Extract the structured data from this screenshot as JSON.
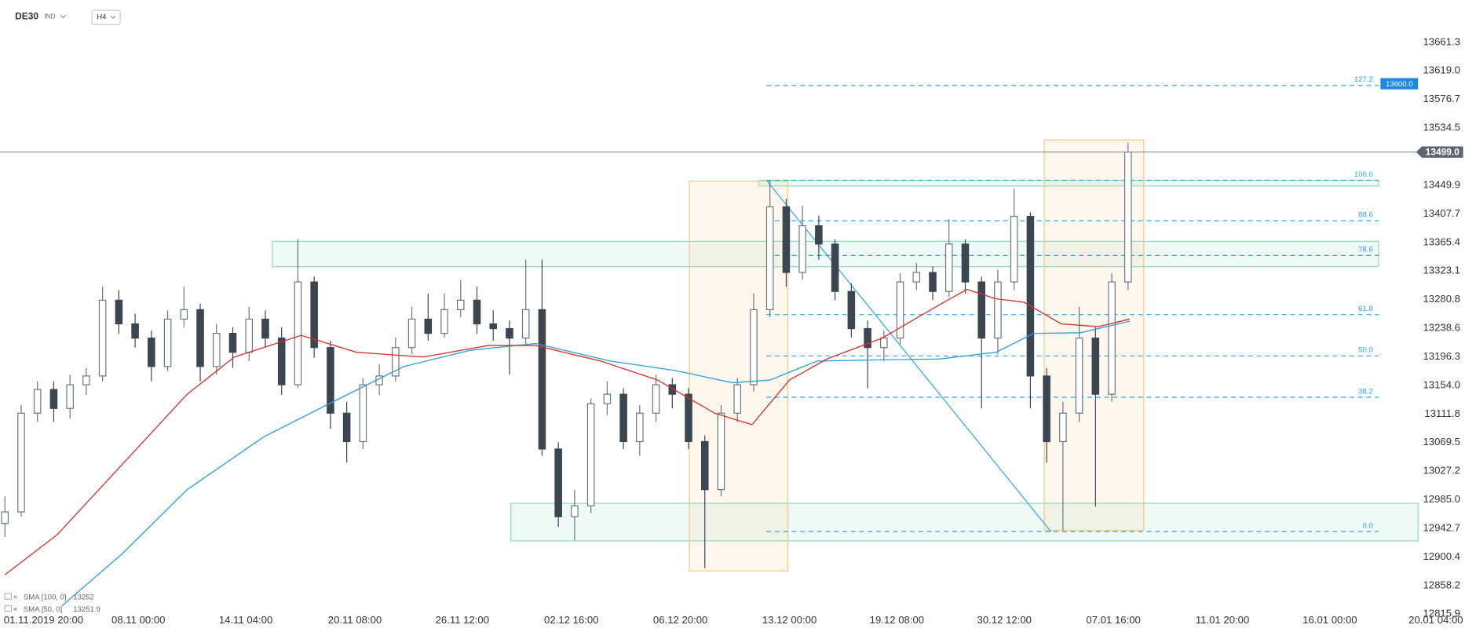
{
  "chart_data": {
    "type": "candlestick",
    "symbol": "DE30",
    "instrument_type": "IND",
    "timeframe": "H4",
    "up_color": "#ffffff",
    "up_stroke": "#6b7580",
    "down_color": "#3b4651",
    "xlim": [
      -0.3,
      89.7
    ],
    "ylim": [
      12815.9,
      13661.3
    ],
    "xticks": [
      {
        "value": 2.3,
        "label": "01.11.2019  20:00"
      },
      {
        "value": 8.2,
        "label": "08.11  00:00"
      },
      {
        "value": 14.8,
        "label": "14.11  04:00"
      },
      {
        "value": 21.5,
        "label": "20.11  08:00"
      },
      {
        "value": 28.1,
        "label": "26.11  12:00"
      },
      {
        "value": 34.8,
        "label": "02.12  16:00"
      },
      {
        "value": 41.5,
        "label": "06.12  20:00"
      },
      {
        "value": 48.2,
        "label": "13.12  00:00"
      },
      {
        "value": 54.8,
        "label": "19.12  08:00"
      },
      {
        "value": 61.4,
        "label": "30.12  12:00"
      },
      {
        "value": 68.1,
        "label": "07.01  16:00"
      },
      {
        "value": 74.8,
        "label": "11.01  20:00"
      },
      {
        "value": 81.4,
        "label": "16.01  00:00"
      },
      {
        "value": 88.0,
        "label": "20.01  04:00"
      }
    ],
    "yticks": [
      13661.3,
      {
        "value": 13619,
        "label": "13619.0"
      },
      13576.7,
      13534.5,
      13449.9,
      13407.7,
      13365.4,
      13323.1,
      13280.8,
      13238.6,
      13196.3,
      {
        "value": 13154,
        "label": "13154.0"
      },
      13111.8,
      13069.5,
      13027.2,
      {
        "value": 12985,
        "label": "12985.0"
      },
      12942.7,
      12900.4,
      12858.2,
      12815.9
    ],
    "ohlc": [
      [
        12950,
        12990,
        12930,
        12967
      ],
      [
        12967,
        13125,
        12960,
        13113
      ],
      [
        13113,
        13160,
        13100,
        13148
      ],
      [
        13148,
        13160,
        13100,
        13120
      ],
      [
        13120,
        13170,
        13105,
        13155
      ],
      [
        13155,
        13180,
        13140,
        13168
      ],
      [
        13168,
        13300,
        13160,
        13280
      ],
      [
        13280,
        13295,
        13230,
        13245
      ],
      [
        13245,
        13260,
        13210,
        13224
      ],
      [
        13224,
        13235,
        13160,
        13182
      ],
      [
        13182,
        13265,
        13175,
        13252
      ],
      [
        13252,
        13300,
        13240,
        13266
      ],
      [
        13266,
        13275,
        13160,
        13182
      ],
      [
        13182,
        13245,
        13170,
        13231
      ],
      [
        13231,
        13240,
        13180,
        13203
      ],
      [
        13203,
        13270,
        13190,
        13252
      ],
      [
        13252,
        13265,
        13210,
        13224
      ],
      [
        13224,
        13240,
        13140,
        13155
      ],
      [
        13155,
        13370,
        13150,
        13307
      ],
      [
        13307,
        13315,
        13195,
        13210
      ],
      [
        13210,
        13220,
        13090,
        13113
      ],
      [
        13113,
        13130,
        13040,
        13071
      ],
      [
        13071,
        13165,
        13060,
        13155
      ],
      [
        13155,
        13185,
        13140,
        13168
      ],
      [
        13168,
        13225,
        13160,
        13210
      ],
      [
        13210,
        13270,
        13200,
        13252
      ],
      [
        13252,
        13290,
        13220,
        13231
      ],
      [
        13231,
        13290,
        13225,
        13266
      ],
      [
        13266,
        13310,
        13255,
        13280
      ],
      [
        13280,
        13300,
        13230,
        13245
      ],
      [
        13245,
        13265,
        13220,
        13238
      ],
      [
        13238,
        13250,
        13170,
        13224
      ],
      [
        13224,
        13340,
        13215,
        13266
      ],
      [
        13266,
        13340,
        13050,
        13060
      ],
      [
        13060,
        13070,
        12945,
        12960
      ],
      [
        12960,
        13000,
        12925,
        12976
      ],
      [
        12976,
        13135,
        12965,
        13127
      ],
      [
        13127,
        13160,
        13110,
        13141
      ],
      [
        13141,
        13150,
        13060,
        13071
      ],
      [
        13071,
        13125,
        13050,
        13113
      ],
      [
        13113,
        13170,
        13100,
        13155
      ],
      [
        13155,
        13165,
        13120,
        13141
      ],
      [
        13141,
        13150,
        13060,
        13071
      ],
      [
        13071,
        13080,
        12884,
        13000
      ],
      [
        13000,
        13125,
        12990,
        13113
      ],
      [
        13113,
        13165,
        13100,
        13155
      ],
      [
        13155,
        13290,
        13145,
        13266
      ],
      [
        13266,
        13457,
        13255,
        13418
      ],
      [
        13418,
        13430,
        13300,
        13321
      ],
      [
        13321,
        13420,
        13310,
        13390
      ],
      [
        13390,
        13405,
        13340,
        13363
      ],
      [
        13363,
        13370,
        13280,
        13293
      ],
      [
        13293,
        13305,
        13225,
        13238
      ],
      [
        13238,
        13250,
        13150,
        13210
      ],
      [
        13210,
        13235,
        13190,
        13224
      ],
      [
        13224,
        13320,
        13215,
        13307
      ],
      [
        13307,
        13335,
        13295,
        13321
      ],
      [
        13321,
        13330,
        13280,
        13293
      ],
      [
        13293,
        13400,
        13285,
        13363
      ],
      [
        13363,
        13370,
        13290,
        13307
      ],
      [
        13307,
        13315,
        13120,
        13224
      ],
      [
        13224,
        13325,
        13200,
        13307
      ],
      [
        13307,
        13445,
        13295,
        13404
      ],
      [
        13404,
        13410,
        13120,
        13168
      ],
      [
        13168,
        13180,
        13040,
        13071
      ],
      [
        13071,
        13130,
        12940,
        13113
      ],
      [
        13113,
        13270,
        13100,
        13224
      ],
      [
        13224,
        13240,
        12975,
        13141
      ],
      [
        13141,
        13320,
        13130,
        13307
      ],
      [
        13307,
        13513,
        13295,
        13499
      ]
    ],
    "series": [
      {
        "name": "SMA [100, 0]",
        "legend_value": 13252.0,
        "color": "#2b9fd9",
        "x": [
          3.5,
          7.2,
          11.2,
          15.9,
          20.5,
          24.5,
          28.6,
          32.6,
          37.2,
          41.2,
          44.7,
          47.0,
          49.9,
          53.9,
          57.4,
          60.9,
          63.2,
          66.1,
          69.1
        ],
        "values": [
          12828,
          12905,
          13000,
          13078,
          13134,
          13182,
          13206,
          13216,
          13190,
          13176,
          13158,
          13162,
          13190,
          13192,
          13193,
          13203,
          13231,
          13232,
          13249
        ]
      },
      {
        "name": "SMA [50, 0]",
        "legend_value": 13251.9,
        "color": "#d9302c",
        "x": [
          0.0,
          3.2,
          7.2,
          11.2,
          14.1,
          18.2,
          21.6,
          25.7,
          29.7,
          32.6,
          36.6,
          40.1,
          43.6,
          45.9,
          48.2,
          50.5,
          53.9,
          57.4,
          59.1,
          60.9,
          62.6,
          64.9,
          67.2,
          69.1
        ],
        "values": [
          12874,
          12933,
          13037,
          13141,
          13196,
          13228,
          13203,
          13196,
          13213,
          13213,
          13190,
          13162,
          13113,
          13096,
          13162,
          13193,
          13224,
          13273,
          13296,
          13282,
          13277,
          13245,
          13241,
          13252
        ]
      }
    ],
    "price_tags": [
      {
        "value": 13499,
        "label": "13499.0",
        "color": "#5d6670"
      },
      {
        "value": 13600,
        "label": "13600.0",
        "color": "#1e88e5"
      }
    ],
    "fib_labels": [
      "127.2",
      "100.0",
      "88.6",
      "78.6",
      "61.8",
      "50.0",
      "38.2",
      "0.0"
    ]
  }
}
